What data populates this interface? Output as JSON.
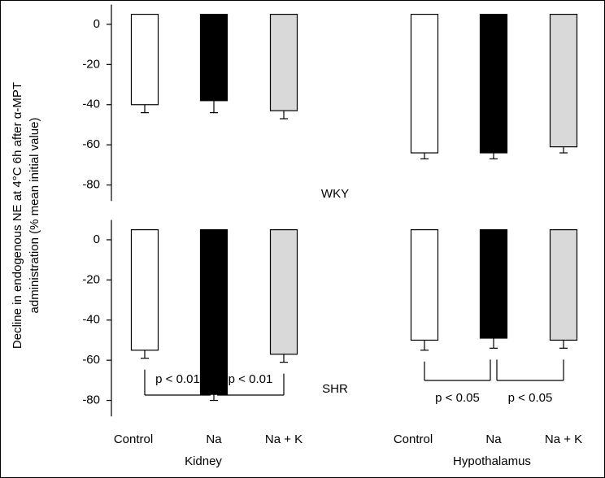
{
  "chart_data": [
    {
      "type": "bar",
      "y_label": [
        "Decline in endogenous NE at 4°C 6h after α-MPT",
        "administration (% mean initial value)"
      ],
      "panel_label": "WKY",
      "values": [
        -40,
        -38,
        -43,
        -64,
        -64,
        -61
      ],
      "errors": [
        4,
        6,
        4,
        3,
        3,
        3
      ],
      "colors": [
        "#ffffff",
        "#000000",
        "#d9d9d9",
        "#ffffff",
        "#000000",
        "#d9d9d9"
      ],
      "ylim": [
        -88,
        5
      ],
      "yticks": [
        0,
        -20,
        -40,
        -60,
        -80
      ]
    },
    {
      "type": "bar",
      "panel_label": "SHR",
      "categories": [
        "Control",
        "Na",
        "Na + K",
        "Control",
        "Na",
        "Na + K"
      ],
      "groups": [
        "Kidney",
        "Hypothalamus"
      ],
      "values": [
        -55,
        -77,
        -57,
        -50,
        -49,
        -50
      ],
      "errors": [
        4,
        3,
        4,
        5,
        5,
        4
      ],
      "colors": [
        "#ffffff",
        "#000000",
        "#d9d9d9",
        "#ffffff",
        "#000000",
        "#d9d9d9"
      ],
      "annotations": [
        "p < 0.01",
        "p < 0.01",
        "p < 0.05",
        "p < 0.05"
      ],
      "ylim": [
        -88,
        5
      ],
      "yticks": [
        0,
        -20,
        -40,
        -60,
        -80
      ]
    }
  ]
}
